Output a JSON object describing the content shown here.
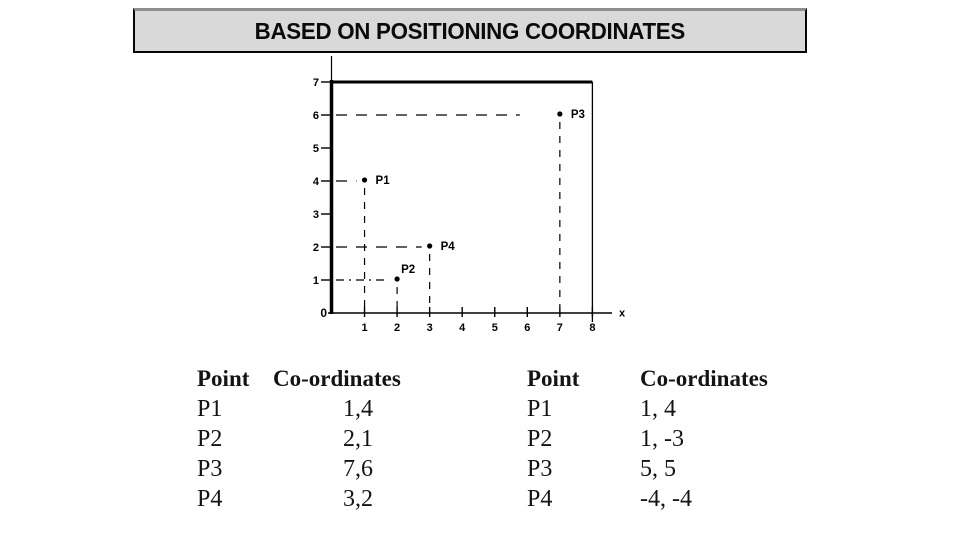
{
  "slide": {
    "title": "BASED ON POSITIONING COORDINATES",
    "title_bg_color": "#d9d9d9",
    "title_text_color": "#0a0a0a",
    "background_color": "#ffffff",
    "line_color": "#000000"
  },
  "chart_data": {
    "type": "scatter",
    "title": "BASED ON POSITIONING COORDINATES",
    "xlabel": "x",
    "ylabel": "",
    "xlim": [
      0,
      8
    ],
    "ylim": [
      0,
      7
    ],
    "x_ticks": [
      1,
      2,
      3,
      4,
      5,
      6,
      7,
      8
    ],
    "y_ticks": [
      1,
      2,
      3,
      4,
      5,
      6,
      7
    ],
    "origin_label": "0",
    "x_axis_label": "x",
    "grid": false,
    "legend": false,
    "leader_lines": "dashed lines from each axis to every plotted point",
    "points": [
      {
        "label": "P1",
        "x": 1,
        "y": 4,
        "label_pos": "right"
      },
      {
        "label": "P2",
        "x": 2,
        "y": 1,
        "label_pos": "above"
      },
      {
        "label": "P3",
        "x": 7,
        "y": 6,
        "label_pos": "right"
      },
      {
        "label": "P4",
        "x": 3,
        "y": 2,
        "label_pos": "right"
      }
    ]
  },
  "tables": [
    {
      "headers": {
        "point": "Point",
        "coords": "Co-ordinates"
      },
      "rows": [
        {
          "point": "P1",
          "coords": "1,4"
        },
        {
          "point": "P2",
          "coords": "2,1"
        },
        {
          "point": "P3",
          "coords": "7,6"
        },
        {
          "point": "P4",
          "coords": "3,2"
        }
      ]
    },
    {
      "headers": {
        "point": "Point",
        "coords": "Co-ordinates"
      },
      "rows": [
        {
          "point": "P1",
          "coords": "1, 4"
        },
        {
          "point": "P2",
          "coords": "1, -3"
        },
        {
          "point": "P3",
          "coords": "5, 5"
        },
        {
          "point": "P4",
          "coords": "-4, -4"
        }
      ]
    }
  ]
}
